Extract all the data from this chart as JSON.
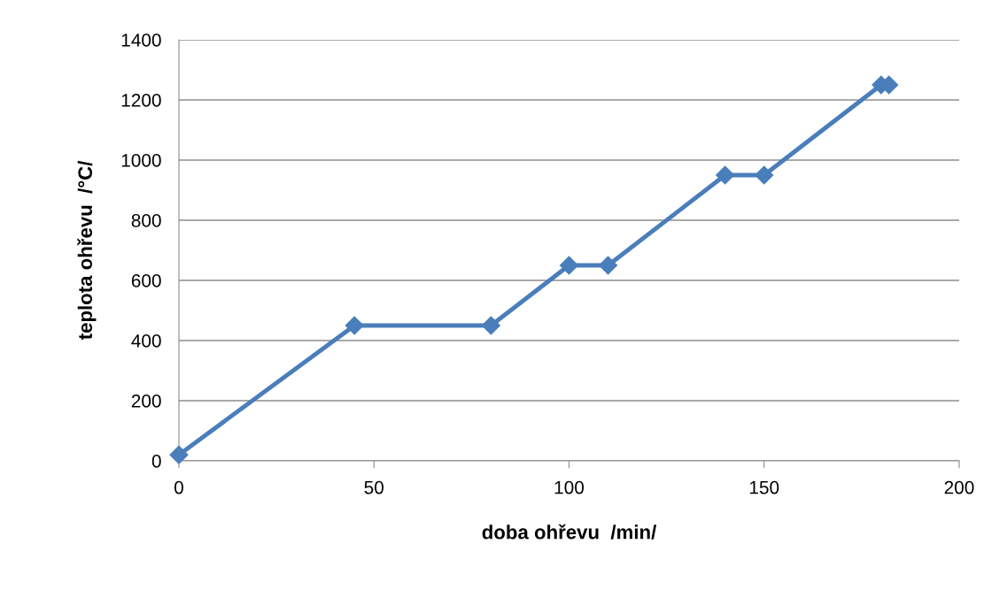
{
  "chart_data": {
    "type": "line",
    "xlabel": "doba ohřevu  /min/",
    "ylabel": "teplota ohřevu  /°C/",
    "x": [
      0,
      45,
      80,
      100,
      110,
      140,
      150,
      180,
      182
    ],
    "series": [
      {
        "color": "#4a7ebb",
        "values": [
          20,
          450,
          450,
          650,
          650,
          950,
          950,
          1250,
          1250
        ]
      }
    ],
    "xlim": [
      0,
      200
    ],
    "xticks": [
      0,
      50,
      100,
      150,
      200
    ],
    "ylim": [
      0,
      1400
    ],
    "yticks": [
      0,
      200,
      400,
      600,
      800,
      1000,
      1200,
      1400
    ],
    "grid": "y",
    "marker": "diamond",
    "line_style": "solid"
  }
}
